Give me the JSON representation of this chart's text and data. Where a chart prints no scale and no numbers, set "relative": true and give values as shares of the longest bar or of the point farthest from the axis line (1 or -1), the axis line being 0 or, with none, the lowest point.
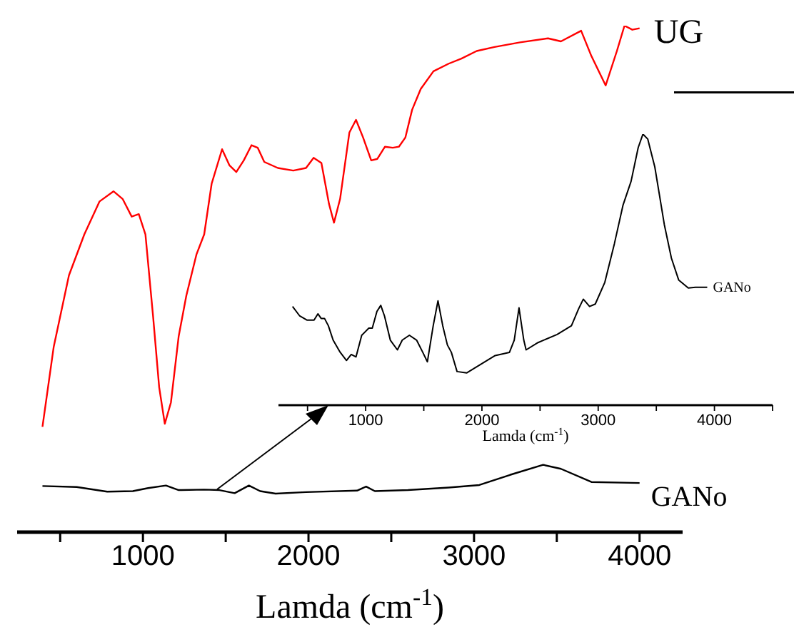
{
  "chart_data": [
    {
      "type": "line",
      "xlabel": "Lamda (cm$^{-1}$)",
      "relative": true,
      "marker": "none",
      "line_style": "solid",
      "grid": false,
      "legend": false,
      "xlim": [
        240,
        4260
      ],
      "xticks": [
        {
          "value": 500,
          "label": null
        },
        1000,
        {
          "value": 1500,
          "label": null
        },
        2000,
        {
          "value": 2500,
          "label": null
        },
        3000,
        {
          "value": 3500,
          "label": null
        },
        4000
      ],
      "series": [
        {
          "name": "UG",
          "color": "#ff0000",
          "x": [
            393,
            461,
            553,
            646,
            738,
            822,
            877,
            932,
            975,
            1015,
            1061,
            1098,
            1132,
            1169,
            1216,
            1262,
            1323,
            1370,
            1415,
            1478,
            1523,
            1564,
            1609,
            1656,
            1693,
            1733,
            1815,
            1908,
            1985,
            2031,
            2078,
            2124,
            2154,
            2191,
            2247,
            2287,
            2330,
            2379,
            2416,
            2462,
            2509,
            2546,
            2585,
            2626,
            2678,
            2755,
            2847,
            2924,
            3016,
            3124,
            3278,
            3447,
            3525,
            3647,
            3709,
            3795,
            3863,
            3909,
            3956,
            4000
          ],
          "values": [
            0.208,
            0.366,
            0.507,
            0.588,
            0.653,
            0.673,
            0.658,
            0.623,
            0.628,
            0.588,
            0.427,
            0.286,
            0.214,
            0.256,
            0.387,
            0.467,
            0.548,
            0.588,
            0.688,
            0.756,
            0.724,
            0.711,
            0.734,
            0.764,
            0.759,
            0.731,
            0.719,
            0.714,
            0.719,
            0.739,
            0.729,
            0.648,
            0.611,
            0.658,
            0.789,
            0.814,
            0.779,
            0.734,
            0.737,
            0.761,
            0.759,
            0.761,
            0.779,
            0.834,
            0.875,
            0.91,
            0.925,
            0.935,
            0.95,
            0.958,
            0.967,
            0.975,
            0.969,
            0.99,
            0.94,
            0.882,
            0.95,
            1,
            0.992,
            0.995
          ]
        },
        {
          "name": "GANo",
          "color": "#000000",
          "x": [
            393,
            600,
            784,
            939,
            1031,
            1139,
            1216,
            1370,
            1462,
            1554,
            1640,
            1708,
            1801,
            1985,
            2293,
            2348,
            2401,
            2601,
            2847,
            3032,
            3217,
            3417,
            3525,
            3709,
            4000
          ],
          "values": [
            0.091,
            0.089,
            0.08,
            0.081,
            0.087,
            0.092,
            0.083,
            0.084,
            0.083,
            0.077,
            0.092,
            0.081,
            0.076,
            0.079,
            0.082,
            0.09,
            0.081,
            0.083,
            0.088,
            0.093,
            0.113,
            0.133,
            0.125,
            0.099,
            0.097
          ]
        }
      ]
    },
    {
      "type": "line",
      "xlabel": "Lamda (cm$^{-1}$)",
      "relative": true,
      "marker": "none",
      "line_style": "solid",
      "grid": false,
      "legend": false,
      "xlim": [
        250,
        4500
      ],
      "xticks": [
        {
          "value": 500,
          "label": null
        },
        1000,
        {
          "value": 1500,
          "label": null
        },
        2000,
        {
          "value": 2500,
          "label": null
        },
        3000,
        {
          "value": 3500,
          "label": null
        },
        4000,
        {
          "value": 4500,
          "label": null
        }
      ],
      "series": [
        {
          "name": "GANo",
          "color": "#000000",
          "x": [
            371,
            433,
            494,
            556,
            589,
            617,
            646,
            679,
            720,
            781,
            835,
            876,
            917,
            966,
            1027,
            1057,
            1097,
            1130,
            1162,
            1212,
            1273,
            1315,
            1376,
            1438,
            1491,
            1531,
            1581,
            1622,
            1663,
            1703,
            1737,
            1786,
            1868,
            1991,
            2114,
            2237,
            2278,
            2319,
            2360,
            2380,
            2483,
            2647,
            2770,
            2831,
            2872,
            2926,
            2975,
            3057,
            3139,
            3213,
            3283,
            3344,
            3385,
            3426,
            3487,
            3569,
            3630,
            3692,
            3775,
            3836,
            3938
          ],
          "values": [
            0.364,
            0.329,
            0.314,
            0.314,
            0.337,
            0.32,
            0.32,
            0.293,
            0.24,
            0.195,
            0.165,
            0.187,
            0.178,
            0.258,
            0.284,
            0.284,
            0.346,
            0.368,
            0.329,
            0.24,
            0.204,
            0.24,
            0.258,
            0.24,
            0.195,
            0.16,
            0.293,
            0.385,
            0.293,
            0.222,
            0.195,
            0.124,
            0.119,
            0.151,
            0.183,
            0.195,
            0.24,
            0.359,
            0.24,
            0.204,
            0.231,
            0.261,
            0.293,
            0.355,
            0.391,
            0.364,
            0.373,
            0.453,
            0.595,
            0.737,
            0.826,
            0.95,
            1,
            0.982,
            0.879,
            0.666,
            0.542,
            0.462,
            0.432,
            0.435,
            0.435
          ]
        }
      ]
    }
  ]
}
